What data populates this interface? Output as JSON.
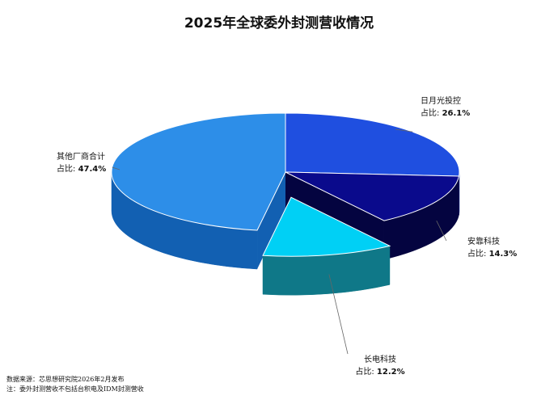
{
  "chart_data": {
    "type": "pie",
    "title": "2025年全球委外封测营收情况",
    "share_label": "占比:",
    "slices": [
      {
        "name": "日月光投控",
        "value": 26.1,
        "value_label": "26.1%",
        "color": "#1f4fe0",
        "side": "#0f2a99"
      },
      {
        "name": "安靠科技",
        "value": 14.3,
        "value_label": "14.3%",
        "color": "#0a0a8c",
        "side": "#040440"
      },
      {
        "name": "长电科技",
        "value": 12.2,
        "value_label": "12.2%",
        "color": "#00d0f5",
        "side": "#0f7888"
      },
      {
        "name": "其他厂商合计",
        "value": 47.4,
        "value_label": "47.4%",
        "color": "#2d8ee8",
        "side": "#1260b2"
      }
    ],
    "exploded_slice": "长电科技",
    "legend": "none"
  },
  "notes": {
    "source": "数据来源：芯思想研究院2026年2月发布",
    "remark": "注：委外封测营收不包括台积电及IDM封测营收"
  }
}
